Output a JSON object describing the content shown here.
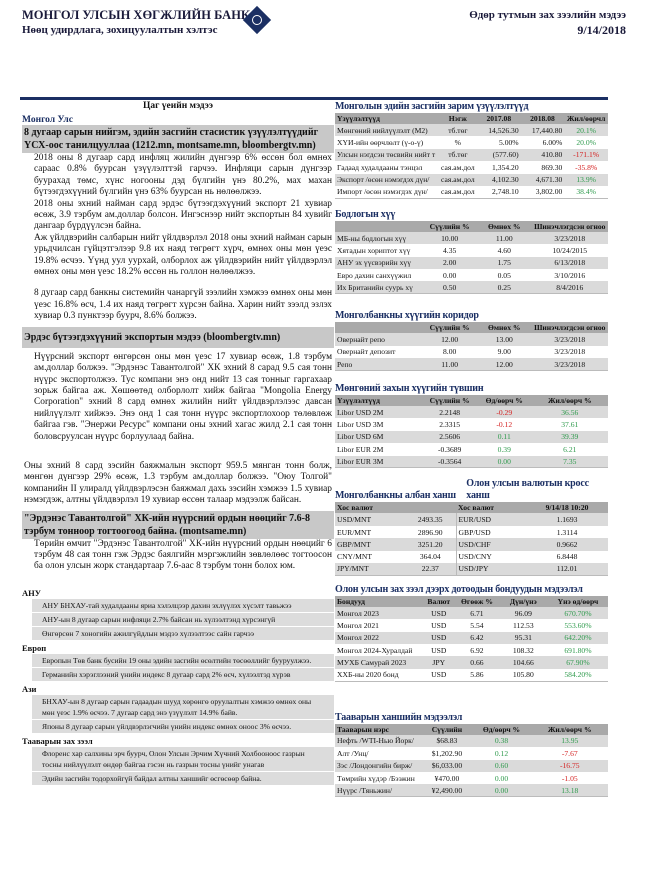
{
  "header": {
    "bank": "МОНГОЛ УЛСЫН ХӨГЖЛИЙН БАНК",
    "dept": "Нөөц удирдлага, зохицуулалтын хэлтэс",
    "report": "Өдөр тутмын зах зээлийн мэдээ",
    "date": "9/14/2018"
  },
  "left": {
    "title": "Цаг үеийн мэдээ",
    "region_mn": "Монгол Улс",
    "news1_h": "8 дугаар сарын нийгэм, эдийн засгийн стасистик үзүүлэлтүүдийг ҮСХ-оос танилцууллаа (1212.mn, montsame.mn, bloombergtv.mn)",
    "news1_p1": "2018 оны 8 дугаар сард инфляц жилийн дүнгээр 6% өссөн бол өмнөх сараас 0.8% буурсан үзүүлэлттэй гарчээ. Инфляци сарын дүнгээр буурахад төмс, хүнс ногооны дэд бүлгийн үнэ 80.2%, мах махан бүтээгдэхүүний бүлгийн үнэ 63% буурсан нь нөлөөлжээ.",
    "news1_p2": "2018 оны эхний найман сард эрдэс бүтээгдэхүүний экспорт 21 хувиар өсөж, 3.9 тэрбум ам.доллар болсон. Ингэснээр нийт экспортын 84 хувийг дангаар бүрдүүлсэн байна.",
    "news1_p3": "Аж үйлдвэрийн салбарын нийт үйлдвэрлэл 2018 оны эхний найман сарын урьдчилсан гүйцэтгэлээр 9.8 их наяд төгрөгт хүрч, өмнөх оны мөн үеэс 19.8% өсчээ. Үүнд уул уурхай, олборлох аж үйлдвэрийн нийт үйлдвэрлэл өмнөх оны мөн үеэс 18.2% өссөн нь голлон нөлөөлжээ.",
    "news1_p4": "8 дугаар сард банкны системийн чанаргүй зээлийн хэмжээ өмнөх оны мөн үеэс 16.8% өсч, 1.4 их наяд төгрөгт хүрсэн байна. Харин нийт зээлд эзлэх хувиар 0.3 пунктээр буурч, 8.6% болжээ.",
    "news2_h": "Эрдэс бүтээгдэхүүний экспортын мэдээ (bloombergtv.mn)",
    "news2_p1": "Нүүрсний экспорт өнгөрсөн оны мөн үеэс 17 хувиар өсөж, 1.8 тэрбум ам.доллар болжээ. \"Эрдэнэс Тавантолгой\" ХК эхний 8 сарад 9.5 сая тонн нүүрс экспортолжээ. Тус компани энэ онд нийт 13 сая тонныг гаргахаар зорьж байгаа аж. Хөшөөтөд олборлолт хийж байгаа \"Mongolia Energy Corporation\" эхний 8 сард өмнөх жилийн нийт үйлдвэрлэлээс давсан нийлүүлэлт хийжээ. Энэ онд 1 сая тонн нүүрс экспортлохоор төлөвлөж байгаа гэв. \"Энержи Ресурс\" компани оны эхний хагас жилд 2.1 сая тонн боловсруулсан нүүрс борлуулаад байна.",
    "news2_p2": "Оны эхний 8 сард зэсийн баяжмалын экспорт 959.5 мянган тонн болж, мөнгөн дүнгээр 29% өсөж, 1.3 тэрбум ам.доллар болжээ. \"Оюу Толгой\" компанийн II улиралд үйлдвэрлэсэн баяжмал дахь зэсийн хэмжээ 1.5 хувиар нэмэгдэж, алтны үйлдвэрлэл 19 хувиар өссөн талаар мэдээлж байсан.",
    "news3_h": "\"Эрдэнэс Тавантолгой\" ХК-ийн нүүрсний ордын нөөцийг 7.6-8 тэрбум тонноор тогтоогоод байна. (montsame.mn)",
    "news3_p1": "Төрийн өмчит \"Эрдэнэс Тавантолгой\" ХК-ийн нүүрсний ордын нөөцийг 6 тэрбум 48 сая тонн гэж Эрдэс баялгийн мэргэжлийн зөвлөлөөс тогтоосон ба олон улсын жорк стандартаар 7.6-аас 8 тэрбум тонн болох юм.",
    "world": [
      {
        "name": "АНУ",
        "items": [
          "АНУ БНХАУ-тай худалдааны яриа хэлэлцээр дахин эхлүүлэх хүсэлт тавьжээ",
          "АНУ-ын 8 дугаар сарын инфляци 2.7% байсан нь хүлээлтэнд хүрсэнгүй",
          "Өнгөрсөн 7 хоногийн ажилгүйдлын мэдээ хүлээлтээс сайн гарчээ"
        ]
      },
      {
        "name": "Европ",
        "items": [
          "Европын Төв банк бусийн 19 оны эдийн засгийн өсөлтийн төсөөллийг бууруулжээ.",
          "Германийн хэрэглээний үнийн индекс 8 дугаар сард 2% өсч, хүлээлтэд хүрэв"
        ]
      },
      {
        "name": "Ази",
        "items": [
          "БНХАУ-ын 8 дугаар сарын гадаадын шууд хөрөнгө оруулалтын хэмжээ өмнөх оны мөн үеэс 1.9% өсчээ. 7 дугаар сард энэ үзүүлэлт 14.9% байв.",
          "Японы 8 дугаар сарын үйлдвэрлэгчийн үнийн индекс өмнөх оноос 3% өсчээ."
        ]
      },
      {
        "name": "Тааварын зах зээл",
        "items": [
          "Флоренс хар салхины эрч буурч, Олон Улсын Эрчим Хүчний Холбооноос газрын тосны нийлүүлэлт өндөр байгаа гэсэн нь газрын тосны үнийг унагав",
          "Эдийн засгийн тодорхойгүй байдал алтны ханшийг өсгөсөөр байна."
        ]
      }
    ]
  },
  "macro": {
    "title": "Монголын эдийн засгийн зарим үзүүлэлтүүд",
    "headers": [
      "Үзүүлэлтүүд",
      "Нэгж",
      "2017.08",
      "2018.08",
      "Жил/өөрчл"
    ],
    "rows": [
      [
        "Мөнгөний нийлүүлэлт (M2)",
        "тб.төг",
        "14,526.30",
        "17,440.80",
        "20.1%"
      ],
      [
        "ХҮИ-ийн өөрчлөлт (ү-о-ү)",
        "%",
        "5.00%",
        "6.00%",
        "20.0%"
      ],
      [
        "Улсын нэгдсэн төсвийн нийт т",
        "тб.төг",
        "(577.60)",
        "410.80",
        "-171.1%"
      ],
      [
        "Гадаад худалдааны тэнцэл",
        "сая.ам.дол",
        "1,354.20",
        "869.30",
        "-35.8%"
      ],
      [
        "Экспорт /өсөн нэмэгдэх дүн/",
        "сая.ам.дол",
        "4,102.30",
        "4,671.30",
        "13.9%"
      ],
      [
        "Импорт /өсөн нэмэгдэх дүн/",
        "сая.ам.дол",
        "2,748.10",
        "3,802.00",
        "38.4%"
      ]
    ]
  },
  "policy": {
    "title": "Бодлогын хүү",
    "headers": [
      "",
      "Сүүлийн %",
      "Өмнөх %",
      "Шинэчлэгдсэн огноо"
    ],
    "rows": [
      [
        "МБ-ны бодлогын хүү",
        "10.00",
        "11.00",
        "3/23/2018"
      ],
      [
        "Хятадын хориптот хүү",
        "4.35",
        "4.60",
        "10/24/2015"
      ],
      [
        "АНУ эх үүсвэрийн хүү",
        "2.00",
        "1.75",
        "6/13/2018"
      ],
      [
        "Евро дахин санхүүжил",
        "0.00",
        "0.05",
        "3/10/2016"
      ],
      [
        "Их Британийн суурь хү",
        "0.50",
        "0.25",
        "8/4/2016"
      ]
    ]
  },
  "corridor": {
    "title": "Монголбанкны хүүгийн коридор",
    "headers": [
      "",
      "Сүүлийн %",
      "Өмнөх %",
      "Шинэчлэгдсэн огноо"
    ],
    "rows": [
      [
        "Овернайт репо",
        "12.00",
        "13.00",
        "3/23/2018"
      ],
      [
        "Овернайт депозит",
        "8.00",
        "9.00",
        "3/23/2018"
      ],
      [
        "Репо",
        "11.00",
        "12.00",
        "3/23/2018"
      ]
    ]
  },
  "money": {
    "title": "Мөнгөний захын хүүгийн түвшин",
    "headers": [
      "Үзүүлэлтүүд",
      "Сүүлийн %",
      "Өд/өөрч %",
      "Жил/өөрч %"
    ],
    "rows": [
      [
        "Libor USD 2M",
        "2.2148",
        "-0.29",
        "36.56"
      ],
      [
        "Libor USD 3M",
        "2.3315",
        "-0.12",
        "37.61"
      ],
      [
        "Libor USD 6M",
        "2.5606",
        "0.11",
        "39.39"
      ],
      [
        "Libor EUR 2M",
        "-0.3689",
        "0.39",
        "6.21"
      ],
      [
        "Libor EUR 3M",
        "-0.3564",
        "0.00",
        "7.35"
      ]
    ]
  },
  "fx": {
    "title_official": "Монголбанкны албан ханш",
    "title_cross": "Олон улсын валютын кросс ханш",
    "h_pair": "Хос валют",
    "h_time": "9/14/18 10:20",
    "official": [
      [
        "USD/MNT",
        "2493.35"
      ],
      [
        "EUR/MNT",
        "2896.90"
      ],
      [
        "GBP/MNT",
        "3251.20"
      ],
      [
        "CNY/MNT",
        "364.04"
      ],
      [
        "JPY/MNT",
        "22.37"
      ]
    ],
    "cross": [
      [
        "EUR/USD",
        "1.1693"
      ],
      [
        "GBP/USD",
        "1.3114"
      ],
      [
        "USD/CHF",
        "0.9662"
      ],
      [
        "USD/CNY",
        "6.8448"
      ],
      [
        "USD/JPY",
        "112.01"
      ]
    ]
  },
  "bonds": {
    "title": "Олон улсын зах зээл дээрх дотоодын бондуудын мэдээлэл",
    "headers": [
      "Бондууд",
      "Валют",
      "Өгөөж %",
      "Дүн/үнэ",
      "Үнэ өд/өөрч"
    ],
    "rows": [
      [
        "Монгол 2023",
        "USD",
        "6.71",
        "96.09",
        "670.70%"
      ],
      [
        "Монгол 2021",
        "USD",
        "5.54",
        "112.53",
        "553.60%"
      ],
      [
        "Монгол 2022",
        "USD",
        "6.42",
        "95.31",
        "642.20%"
      ],
      [
        "Монгол 2024-Хуралдай",
        "USD",
        "6.92",
        "108.32",
        "691.80%"
      ],
      [
        "МУХБ Самурай 2023",
        "JPY",
        "0.66",
        "104.66",
        "67.90%"
      ],
      [
        "ХХБ-ны 2020 бонд",
        "USD",
        "5.86",
        "105.80",
        "584.20%"
      ]
    ]
  },
  "commod": {
    "title": "Тааварын ханшийн мэдээлэл",
    "headers": [
      "Тааварын нэрс",
      "Сүүлийн",
      "Өд/өөрч %",
      "Жил/өөрч %"
    ],
    "rows": [
      [
        "Нефть /WTI-Нью Йорк/",
        "$68.83",
        "0.38",
        "13.95"
      ],
      [
        "Алт /Унц/",
        "$1,202.90",
        "0.12",
        "-7.67"
      ],
      [
        "Зэс /Лондонгийн бирж/",
        "$6,033.00",
        "0.60",
        "-16.75"
      ],
      [
        "Төмрийн хүдэр /Бээжин",
        "¥470.00",
        "0.00",
        "-1.05"
      ],
      [
        "Нүүрс /Тяньжин/",
        "¥2,490.00",
        "0.00",
        "13.18"
      ]
    ]
  },
  "colors": {
    "navy": "#1b2f63",
    "positive": "#2e9a4c",
    "negative": "#d42020"
  }
}
